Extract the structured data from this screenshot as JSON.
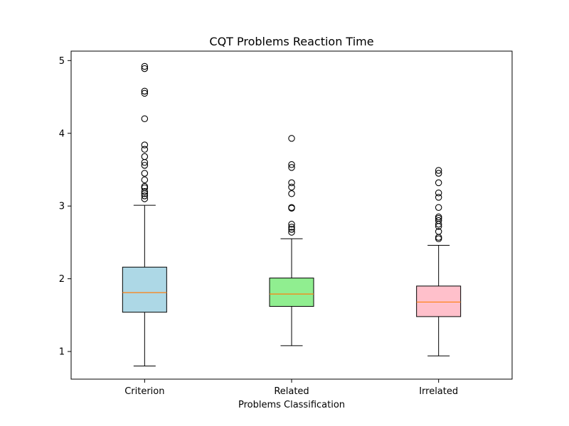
{
  "chart_data": {
    "type": "boxplot",
    "title": "CQT Problems Reaction Time",
    "xlabel": "Problems Classification",
    "ylabel": "",
    "categories": [
      "Criterion",
      "Related",
      "Irrelated"
    ],
    "ylim": [
      0.62,
      5.13
    ],
    "yticks": [
      1,
      2,
      3,
      4,
      5
    ],
    "grid": false,
    "colors": {
      "box_fills": [
        "#add8e6",
        "#90ee90",
        "#ffc0cb"
      ],
      "median": "#ff7f0e",
      "outline": "#000000"
    },
    "series": [
      {
        "category": "Criterion",
        "whisker_low": 0.8,
        "q1": 1.54,
        "median": 1.81,
        "q3": 2.16,
        "whisker_high": 3.01,
        "outliers": [
          3.1,
          3.14,
          3.17,
          3.2,
          3.25,
          3.27,
          3.36,
          3.45,
          3.56,
          3.6,
          3.68,
          3.78,
          3.84,
          4.2,
          4.55,
          4.58,
          4.89,
          4.92
        ]
      },
      {
        "category": "Related",
        "whisker_low": 1.08,
        "q1": 1.62,
        "median": 1.79,
        "q3": 2.01,
        "whisker_high": 2.55,
        "outliers": [
          2.64,
          2.68,
          2.71,
          2.75,
          2.97,
          2.98,
          3.17,
          3.26,
          3.32,
          3.53,
          3.57,
          3.93
        ]
      },
      {
        "category": "Irrelated",
        "whisker_low": 0.94,
        "q1": 1.48,
        "median": 1.68,
        "q3": 1.9,
        "whisker_high": 2.46,
        "outliers": [
          2.55,
          2.57,
          2.65,
          2.72,
          2.75,
          2.8,
          2.83,
          2.85,
          2.98,
          3.12,
          3.18,
          3.32,
          3.45,
          3.49
        ]
      }
    ]
  }
}
